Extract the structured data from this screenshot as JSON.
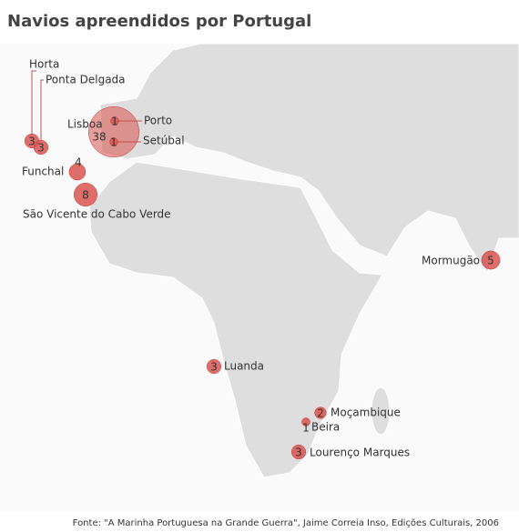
{
  "title": "Navios apreendidos por Portugal",
  "source": "Fonte: \"A Marinha Portuguesa na Grande Guerra\", Jaime Correia Inso, Edições Culturais, 2006",
  "places": [
    {
      "name": "Horta",
      "count": 3
    },
    {
      "name": "Ponta Delgada",
      "count": 3
    },
    {
      "name": "Lisboa",
      "count": 38
    },
    {
      "name": "Porto",
      "count": 1
    },
    {
      "name": "Setúbal",
      "count": 1
    },
    {
      "name": "Funchal",
      "count": 4
    },
    {
      "name": "São Vicente do Cabo Verde",
      "count": 8
    },
    {
      "name": "Mormugão",
      "count": 5
    },
    {
      "name": "Luanda",
      "count": 3
    },
    {
      "name": "Moçambique",
      "count": 2
    },
    {
      "name": "Beira",
      "count": 1
    },
    {
      "name": "Lourenço Marques",
      "count": 3
    }
  ]
}
